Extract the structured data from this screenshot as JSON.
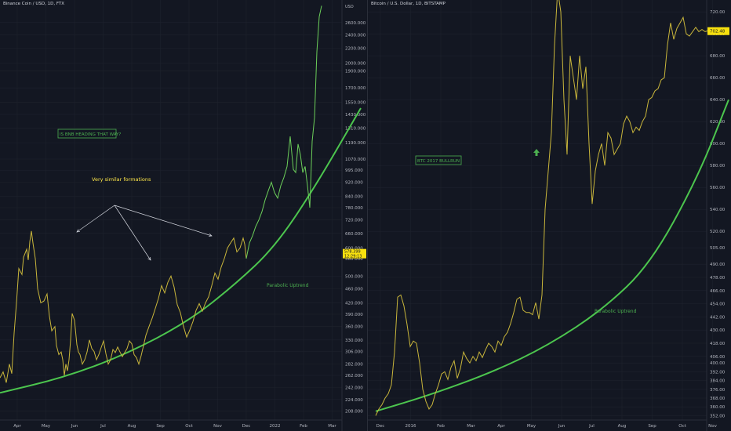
{
  "colors": {
    "background": "#131722",
    "grid": "#1e222d",
    "price_line": "#c9b63b",
    "price_line_recent": "#6ccf5a",
    "curve": "#4cc54e",
    "tag_yellow": "#f7e00e",
    "label_green": "#4caf50",
    "text_yellow": "#ffe84a",
    "arrow": "#d1d4dc"
  },
  "left_pane": {
    "header": "Binance Coin / USD, 1D, FTX",
    "currency": "USD",
    "price_tag": {
      "price": "578.399",
      "countdown": "12:29:13"
    },
    "annotations": {
      "box_label": "IS BNB HEADING THAT WAY?",
      "note": "Very similar formations",
      "curve_label": "Parabolic Uptrend"
    }
  },
  "right_pane": {
    "header": "Bitcoin / U.S. Dollar, 1D, BITSTAMP",
    "price_tag": {
      "price": "702.48"
    },
    "annotations": {
      "box_label": "BTC 2017 BULLRUN",
      "curve_label": "Parabolic Uptrend",
      "arrow_icon": "up-arrow-icon"
    }
  },
  "chart_data": [
    {
      "type": "line",
      "title": "Binance Coin / USD, 1D, FTX",
      "yscale": "log",
      "ylim": [
        196,
        2950
      ],
      "y_ticks": [
        "2600.000",
        "2400.000",
        "2200.000",
        "2000.000",
        "1900.000",
        "1700.000",
        "1550.000",
        "1430.000",
        "1310.000",
        "1190.000",
        "1070.000",
        "995.000",
        "920.000",
        "840.000",
        "780.000",
        "720.000",
        "660.000",
        "600.000",
        "560.000",
        "500.000",
        "460.000",
        "420.000",
        "390.000",
        "360.000",
        "330.000",
        "306.000",
        "282.000",
        "262.000",
        "242.000",
        "224.000",
        "208.000"
      ],
      "x_ticks": [
        "Apr",
        "May",
        "Jun",
        "Jul",
        "Aug",
        "Sep",
        "Oct",
        "Nov",
        "Dec",
        "2022",
        "Feb",
        "Mar"
      ],
      "series": [
        {
          "x": [
            0,
            4,
            8,
            12,
            15,
            18,
            21,
            24,
            28,
            30,
            34,
            36,
            38,
            40,
            42,
            45,
            48,
            52,
            56,
            60,
            63,
            66,
            70,
            72,
            75,
            78,
            80,
            82,
            84,
            86,
            88,
            90,
            92,
            95,
            98,
            100,
            102,
            105,
            108,
            111,
            114,
            117,
            120,
            123,
            126,
            129,
            132,
            135,
            138,
            141,
            144,
            147,
            150,
            153,
            156,
            159,
            162,
            165,
            168,
            171,
            174,
            177,
            180,
            183,
            186,
            190,
            194,
            198,
            202,
            206,
            210,
            214,
            218,
            222,
            226,
            230,
            234,
            238,
            242,
            246,
            250,
            254,
            258,
            262,
            266,
            270,
            274,
            278,
            282,
            286,
            290,
            294,
            298,
            302,
            306,
            310,
            312,
            314
          ],
          "values": [
            258,
            268,
            250,
            282,
            265,
            345,
            420,
            525,
            505,
            565,
            595,
            555,
            625,
            670,
            620,
            560,
            460,
            420,
            425,
            445,
            385,
            350,
            360,
            318,
            300,
            305,
            290,
            262,
            282,
            270,
            290,
            330,
            392,
            375,
            320,
            305,
            300,
            282,
            290,
            305,
            330,
            312,
            306,
            290,
            300,
            314,
            328,
            302,
            282,
            290,
            310,
            304,
            315,
            305,
            296,
            304,
            312,
            328,
            322,
            300,
            294,
            282,
            298,
            318,
            340,
            360,
            380,
            405,
            432,
            470,
            448,
            480,
            500,
            465,
            415,
            394,
            360,
            336,
            352,
            372,
            400,
            418,
            398,
            420,
            437,
            470,
            510,
            490,
            530,
            560,
            600,
            620,
            640,
            585,
            600,
            640,
            615,
            560
          ]
        },
        {
          "name": "",
          "x": [
            314,
            318,
            322,
            326,
            330,
            334,
            338,
            342,
            346,
            350,
            354,
            358,
            362,
            366,
            370,
            374,
            377,
            380,
            383,
            386,
            389,
            392,
            395,
            398,
            401,
            404,
            407,
            410
          ],
          "values": [
            560,
            620,
            650,
            690,
            720,
            760,
            820,
            870,
            920,
            860,
            830,
            900,
            950,
            1020,
            1240,
            1000,
            980,
            1180,
            1100,
            980,
            1020,
            900,
            780,
            1200,
            1400,
            2150,
            2700,
            2900
          ]
        }
      ],
      "trend_curve": {
        "label": "Parabolic Uptrend",
        "x": [
          0,
          80,
          160,
          240,
          300,
          350,
          400,
          460
        ],
        "values": [
          234,
          258,
          300,
          372,
          474,
          603,
          880,
          1490
        ]
      }
    },
    {
      "type": "line",
      "title": "Bitcoin / U.S. Dollar, 1D, BITSTAMP",
      "yscale": "linear",
      "ylim": [
        348,
        728
      ],
      "y_ticks": [
        "720.00",
        "700.00",
        "680.00",
        "660.00",
        "640.00",
        "620.00",
        "600.00",
        "580.00",
        "560.00",
        "540.00",
        "520.00",
        "505.00",
        "490.00",
        "478.00",
        "466.00",
        "454.00",
        "442.00",
        "430.00",
        "418.00",
        "406.00",
        "400.00",
        "392.00",
        "384.00",
        "376.00",
        "368.00",
        "360.00",
        "352.00"
      ],
      "x_ticks": [
        "Dec",
        "2016",
        "Feb",
        "Mar",
        "Apr",
        "May",
        "Jun",
        "Jul",
        "Aug",
        "Sep",
        "Oct",
        "Nov"
      ],
      "series": [
        {
          "x": [
            10,
            14,
            18,
            22,
            26,
            30,
            34,
            38,
            42,
            46,
            50,
            54,
            58,
            62,
            66,
            70,
            74,
            78,
            82,
            86,
            90,
            94,
            98,
            102,
            106,
            110,
            114,
            118,
            122,
            126,
            130,
            134,
            138,
            142,
            146,
            150,
            154,
            158,
            162,
            166,
            170,
            174,
            178,
            182,
            186,
            190,
            194,
            198,
            202,
            206,
            210,
            214,
            218,
            222,
            226,
            230,
            234,
            238,
            242,
            246,
            250,
            254,
            258,
            262,
            266,
            270,
            274,
            278,
            282,
            286,
            290,
            294,
            298,
            302,
            306,
            310,
            314,
            318,
            322,
            326,
            330,
            334,
            338,
            342,
            346,
            350,
            354,
            358,
            362,
            366,
            370,
            374,
            378,
            382,
            386,
            390,
            394,
            398,
            402,
            406,
            410,
            414,
            418,
            422,
            426,
            430,
            434,
            438,
            442,
            446,
            450,
            454
          ],
          "values": [
            352,
            358,
            362,
            368,
            372,
            380,
            410,
            460,
            462,
            452,
            435,
            415,
            420,
            418,
            400,
            376,
            365,
            358,
            362,
            372,
            380,
            390,
            392,
            385,
            396,
            402,
            386,
            395,
            410,
            404,
            400,
            406,
            402,
            410,
            405,
            412,
            418,
            415,
            410,
            420,
            416,
            424,
            428,
            436,
            446,
            458,
            460,
            448,
            446,
            446,
            444,
            455,
            440,
            462,
            540,
            575,
            610,
            690,
            740,
            720,
            640,
            590,
            680,
            660,
            640,
            680,
            650,
            670,
            600,
            545,
            575,
            590,
            600,
            580,
            610,
            605,
            590,
            595,
            600,
            618,
            625,
            620,
            610,
            615,
            612,
            620,
            625,
            640,
            642,
            648,
            650,
            658,
            660,
            690,
            710,
            695,
            705,
            710,
            715,
            700,
            698,
            702,
            706,
            702,
            704,
            702,
            703,
            701,
            702,
            702,
            702,
            702
          ]
        }
      ],
      "trend_curve": {
        "label": "Parabolic Uptrend",
        "x": [
          10,
          80,
          160,
          230,
          300,
          360,
          420,
          460
        ],
        "values": [
          356,
          371,
          392,
          416,
          449,
          490,
          568,
          640
        ]
      }
    }
  ]
}
